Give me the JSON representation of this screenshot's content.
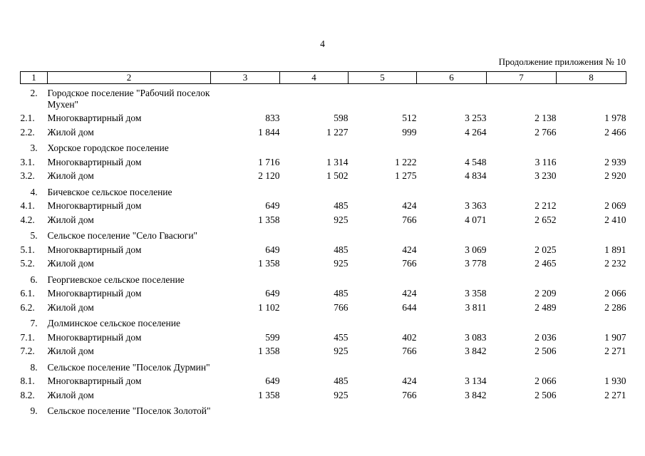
{
  "page": {
    "number": "4",
    "header_right": "Продолжение приложения № 10"
  },
  "table": {
    "column_headers": [
      "1",
      "2",
      "3",
      "4",
      "5",
      "6",
      "7",
      "8"
    ],
    "rows": [
      {
        "type": "section",
        "num": "2.",
        "label": "Городское поселение \"Рабочий поселок Мухен\""
      },
      {
        "type": "data",
        "num": "2.1.",
        "label": "Многоквартирный дом",
        "values": [
          "833",
          "598",
          "512",
          "3 253",
          "2 138",
          "1 978"
        ]
      },
      {
        "type": "data",
        "num": "2.2.",
        "label": "Жилой дом",
        "values": [
          "1 844",
          "1 227",
          "999",
          "4 264",
          "2 766",
          "2 466"
        ]
      },
      {
        "type": "section",
        "num": "3.",
        "label": "Хорское городское поселение"
      },
      {
        "type": "data",
        "num": "3.1.",
        "label": "Многоквартирный дом",
        "values": [
          "1 716",
          "1 314",
          "1 222",
          "4 548",
          "3 116",
          "2 939"
        ]
      },
      {
        "type": "data",
        "num": "3.2.",
        "label": "Жилой дом",
        "values": [
          "2 120",
          "1 502",
          "1 275",
          "4 834",
          "3 230",
          "2 920"
        ]
      },
      {
        "type": "section",
        "num": "4.",
        "label": "Бичевское сельское поселение"
      },
      {
        "type": "data",
        "num": "4.1.",
        "label": "Многоквартирный дом",
        "values": [
          "649",
          "485",
          "424",
          "3 363",
          "2 212",
          "2 069"
        ]
      },
      {
        "type": "data",
        "num": "4.2.",
        "label": "Жилой дом",
        "values": [
          "1 358",
          "925",
          "766",
          "4 071",
          "2 652",
          "2 410"
        ]
      },
      {
        "type": "section",
        "num": "5.",
        "label": "Сельское поселение \"Село Гвасюги\""
      },
      {
        "type": "data",
        "num": "5.1.",
        "label": "Многоквартирный дом",
        "values": [
          "649",
          "485",
          "424",
          "3 069",
          "2 025",
          "1 891"
        ]
      },
      {
        "type": "data",
        "num": "5.2.",
        "label": "Жилой дом",
        "values": [
          "1 358",
          "925",
          "766",
          "3 778",
          "2 465",
          "2 232"
        ]
      },
      {
        "type": "section",
        "num": "6.",
        "label": "Георгиевское сельское поселение"
      },
      {
        "type": "data",
        "num": "6.1.",
        "label": "Многоквартирный дом",
        "values": [
          "649",
          "485",
          "424",
          "3 358",
          "2 209",
          "2 066"
        ]
      },
      {
        "type": "data",
        "num": "6.2.",
        "label": "Жилой дом",
        "values": [
          "1 102",
          "766",
          "644",
          "3 811",
          "2 489",
          "2 286"
        ]
      },
      {
        "type": "section",
        "num": "7.",
        "label": "Долминское сельское поселение"
      },
      {
        "type": "data",
        "num": "7.1.",
        "label": "Многоквартирный дом",
        "values": [
          "599",
          "455",
          "402",
          "3 083",
          "2 036",
          "1 907"
        ]
      },
      {
        "type": "data",
        "num": "7.2.",
        "label": "Жилой дом",
        "values": [
          "1 358",
          "925",
          "766",
          "3 842",
          "2 506",
          "2 271"
        ]
      },
      {
        "type": "section",
        "num": "8.",
        "label": "Сельское поселение \"Поселок Дурмин\""
      },
      {
        "type": "data",
        "num": "8.1.",
        "label": "Многоквартирный дом",
        "values": [
          "649",
          "485",
          "424",
          "3 134",
          "2 066",
          "1 930"
        ]
      },
      {
        "type": "data",
        "num": "8.2.",
        "label": "Жилой дом",
        "values": [
          "1 358",
          "925",
          "766",
          "3 842",
          "2 506",
          "2 271"
        ]
      },
      {
        "type": "section",
        "num": "9.",
        "label": "Сельское поселение \"Поселок Золотой\""
      }
    ]
  }
}
